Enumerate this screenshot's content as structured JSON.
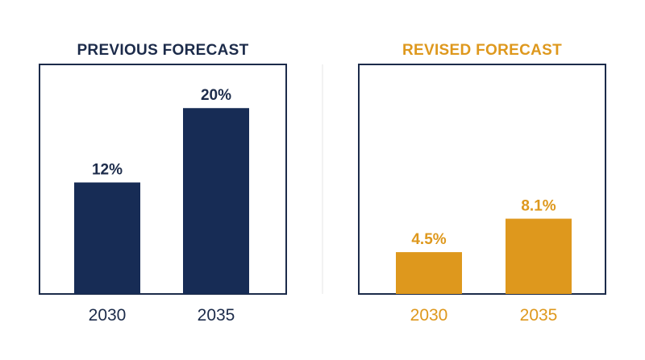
{
  "chart_data": [
    {
      "type": "bar",
      "title": "PREVIOUS FORECAST",
      "categories": [
        "2030",
        "2035"
      ],
      "values": [
        12,
        20
      ],
      "value_labels": [
        "12%",
        "20%"
      ],
      "ylim": [
        0,
        24.7
      ],
      "color": "#172c55",
      "grid": false,
      "legend": "none"
    },
    {
      "type": "bar",
      "title": "REVISED FORECAST",
      "categories": [
        "2030",
        "2035"
      ],
      "values": [
        4.5,
        8.1
      ],
      "value_labels": [
        "4.5%",
        "8.1%"
      ],
      "ylim": [
        0,
        24.7
      ],
      "color": "#de981d",
      "grid": false,
      "legend": "none"
    }
  ],
  "colors": {
    "divider": "#e6e6e6",
    "frame": "#1c2b4a",
    "text_dark": "#1c2b4a"
  }
}
